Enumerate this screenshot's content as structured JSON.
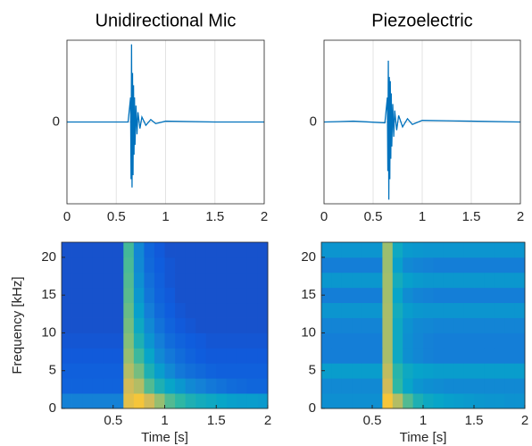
{
  "chart_data": [
    {
      "type": "line",
      "title": "Unidirectional Mic",
      "color": "#0072bd",
      "grid": true,
      "xlim": [
        0,
        2
      ],
      "xticks": [
        0,
        0.5,
        1,
        1.5,
        2
      ],
      "ylim": [
        -1,
        1
      ],
      "yticks": [
        0
      ],
      "x": [
        0,
        0.3,
        0.62,
        0.645,
        0.65,
        0.655,
        0.66,
        0.665,
        0.67,
        0.675,
        0.68,
        0.685,
        0.69,
        0.7,
        0.71,
        0.72,
        0.74,
        0.76,
        0.8,
        0.85,
        0.9,
        1.0,
        1.5,
        2
      ],
      "values": [
        0,
        0,
        0,
        0.3,
        -0.7,
        0.95,
        -0.8,
        0.6,
        -0.65,
        0.45,
        -0.4,
        0.3,
        -0.28,
        0.2,
        -0.15,
        0.12,
        -0.08,
        0.06,
        -0.04,
        0.03,
        -0.02,
        0.01,
        0,
        0
      ]
    },
    {
      "type": "line",
      "title": "Piezoelectric",
      "color": "#0072bd",
      "grid": true,
      "xlim": [
        0,
        2
      ],
      "xticks": [
        0,
        0.5,
        1,
        1.5,
        2
      ],
      "ylim": [
        -1,
        1
      ],
      "yticks": [
        0
      ],
      "x": [
        0,
        0.3,
        0.62,
        0.645,
        0.65,
        0.655,
        0.66,
        0.665,
        0.67,
        0.675,
        0.68,
        0.685,
        0.69,
        0.7,
        0.71,
        0.72,
        0.74,
        0.76,
        0.8,
        0.85,
        0.9,
        1.0,
        1.5,
        2
      ],
      "values": [
        0,
        0.01,
        -0.01,
        0.3,
        -0.6,
        0.75,
        -0.95,
        0.55,
        -0.7,
        0.5,
        -0.45,
        0.35,
        -0.3,
        0.22,
        -0.18,
        0.14,
        -0.1,
        0.08,
        -0.06,
        0.04,
        -0.03,
        0.02,
        0.01,
        0
      ]
    },
    {
      "type": "heatmap",
      "x_label": "Time [s]",
      "y_label": "Frequency [kHz]",
      "xlim": [
        0,
        2
      ],
      "xticks": [
        0.5,
        1,
        1.5,
        2
      ],
      "ylim": [
        0,
        22
      ],
      "yticks": [
        0,
        5,
        10,
        15,
        20
      ],
      "clim": [
        0,
        100
      ],
      "colormap": [
        "#352a87",
        "#0f5cdd",
        "#1481d6",
        "#06a4ca",
        "#2eb7a4",
        "#87bf77",
        "#d1bb59",
        "#fec832",
        "#f9fb0e"
      ],
      "x": [
        0.05,
        0.15,
        0.25,
        0.35,
        0.45,
        0.55,
        0.65,
        0.75,
        0.85,
        0.95,
        1.05,
        1.15,
        1.25,
        1.35,
        1.45,
        1.55,
        1.65,
        1.75,
        1.85,
        1.95
      ],
      "y": [
        1,
        3,
        5,
        7,
        9,
        11,
        13,
        15,
        17,
        19,
        21
      ],
      "values": [
        [
          25,
          25,
          25,
          25,
          25,
          25,
          80,
          85,
          75,
          65,
          55,
          50,
          45,
          42,
          40,
          38,
          36,
          35,
          35,
          34
        ],
        [
          15,
          15,
          15,
          15,
          15,
          15,
          75,
          70,
          55,
          45,
          38,
          33,
          28,
          25,
          22,
          20,
          18,
          17,
          16,
          16
        ],
        [
          14,
          14,
          14,
          14,
          14,
          14,
          70,
          60,
          45,
          35,
          28,
          22,
          19,
          17,
          15,
          14,
          14,
          14,
          14,
          14
        ],
        [
          12,
          12,
          12,
          12,
          12,
          12,
          65,
          52,
          38,
          28,
          22,
          18,
          15,
          13,
          12,
          12,
          12,
          12,
          12,
          12
        ],
        [
          11,
          11,
          11,
          11,
          11,
          11,
          62,
          45,
          32,
          24,
          18,
          15,
          13,
          12,
          11,
          11,
          11,
          11,
          11,
          11
        ],
        [
          10,
          10,
          10,
          10,
          10,
          10,
          60,
          40,
          28,
          20,
          15,
          12,
          11,
          10,
          10,
          10,
          10,
          10,
          10,
          10
        ],
        [
          10,
          10,
          10,
          10,
          10,
          10,
          58,
          36,
          24,
          17,
          13,
          11,
          10,
          10,
          10,
          10,
          10,
          10,
          10,
          10
        ],
        [
          10,
          10,
          10,
          10,
          10,
          10,
          56,
          33,
          21,
          15,
          12,
          10,
          10,
          10,
          10,
          10,
          10,
          10,
          10,
          10
        ],
        [
          10,
          10,
          10,
          10,
          10,
          10,
          55,
          30,
          19,
          14,
          11,
          10,
          10,
          10,
          10,
          10,
          10,
          10,
          10,
          10
        ],
        [
          10,
          10,
          10,
          10,
          10,
          10,
          54,
          28,
          17,
          13,
          11,
          10,
          10,
          10,
          10,
          10,
          10,
          10,
          10,
          10
        ],
        [
          10,
          10,
          10,
          10,
          10,
          10,
          53,
          27,
          16,
          12,
          10,
          10,
          10,
          10,
          10,
          10,
          10,
          10,
          10,
          10
        ]
      ]
    },
    {
      "type": "heatmap",
      "x_label": "Time [s]",
      "xlim": [
        0,
        2
      ],
      "xticks": [
        0.5,
        1,
        1.5,
        2
      ],
      "ylim": [
        0,
        22
      ],
      "yticks": [
        0,
        5,
        10,
        15,
        20
      ],
      "clim": [
        0,
        100
      ],
      "colormap": [
        "#352a87",
        "#0f5cdd",
        "#1481d6",
        "#06a4ca",
        "#2eb7a4",
        "#87bf77",
        "#d1bb59",
        "#fec832",
        "#f9fb0e"
      ],
      "x": [
        0.05,
        0.15,
        0.25,
        0.35,
        0.45,
        0.55,
        0.65,
        0.75,
        0.85,
        0.95,
        1.05,
        1.15,
        1.25,
        1.35,
        1.45,
        1.55,
        1.65,
        1.75,
        1.85,
        1.95
      ],
      "y": [
        1,
        3,
        5,
        7,
        9,
        11,
        13,
        15,
        17,
        19,
        21
      ],
      "values": [
        [
          30,
          30,
          30,
          30,
          30,
          30,
          85,
          70,
          55,
          45,
          40,
          38,
          36,
          35,
          34,
          33,
          32,
          32,
          31,
          31
        ],
        [
          28,
          28,
          28,
          28,
          28,
          28,
          75,
          50,
          38,
          32,
          30,
          29,
          28,
          28,
          28,
          28,
          28,
          28,
          28,
          28
        ],
        [
          35,
          35,
          35,
          35,
          35,
          35,
          72,
          48,
          40,
          37,
          36,
          35,
          35,
          35,
          35,
          35,
          35,
          35,
          35,
          35
        ],
        [
          24,
          24,
          24,
          24,
          24,
          24,
          68,
          40,
          30,
          27,
          25,
          24,
          24,
          24,
          24,
          24,
          24,
          24,
          24,
          24
        ],
        [
          24,
          24,
          24,
          24,
          24,
          24,
          68,
          40,
          30,
          27,
          25,
          24,
          24,
          24,
          24,
          24,
          24,
          24,
          24,
          24
        ],
        [
          26,
          26,
          26,
          26,
          26,
          26,
          68,
          40,
          31,
          28,
          27,
          26,
          26,
          26,
          26,
          26,
          26,
          26,
          26,
          26
        ],
        [
          32,
          32,
          32,
          32,
          32,
          32,
          68,
          42,
          35,
          33,
          32,
          32,
          32,
          32,
          32,
          32,
          32,
          32,
          32,
          32
        ],
        [
          24,
          24,
          24,
          24,
          24,
          24,
          67,
          38,
          29,
          26,
          25,
          24,
          24,
          24,
          24,
          24,
          24,
          24,
          24,
          24
        ],
        [
          33,
          33,
          33,
          33,
          33,
          33,
          67,
          42,
          36,
          34,
          33,
          33,
          33,
          33,
          33,
          33,
          33,
          33,
          33,
          33
        ],
        [
          24,
          24,
          24,
          24,
          24,
          24,
          66,
          36,
          28,
          26,
          25,
          24,
          24,
          24,
          24,
          24,
          24,
          24,
          24,
          24
        ],
        [
          32,
          32,
          32,
          32,
          32,
          32,
          66,
          40,
          34,
          33,
          32,
          32,
          32,
          32,
          32,
          32,
          32,
          32,
          32,
          32
        ]
      ]
    }
  ]
}
